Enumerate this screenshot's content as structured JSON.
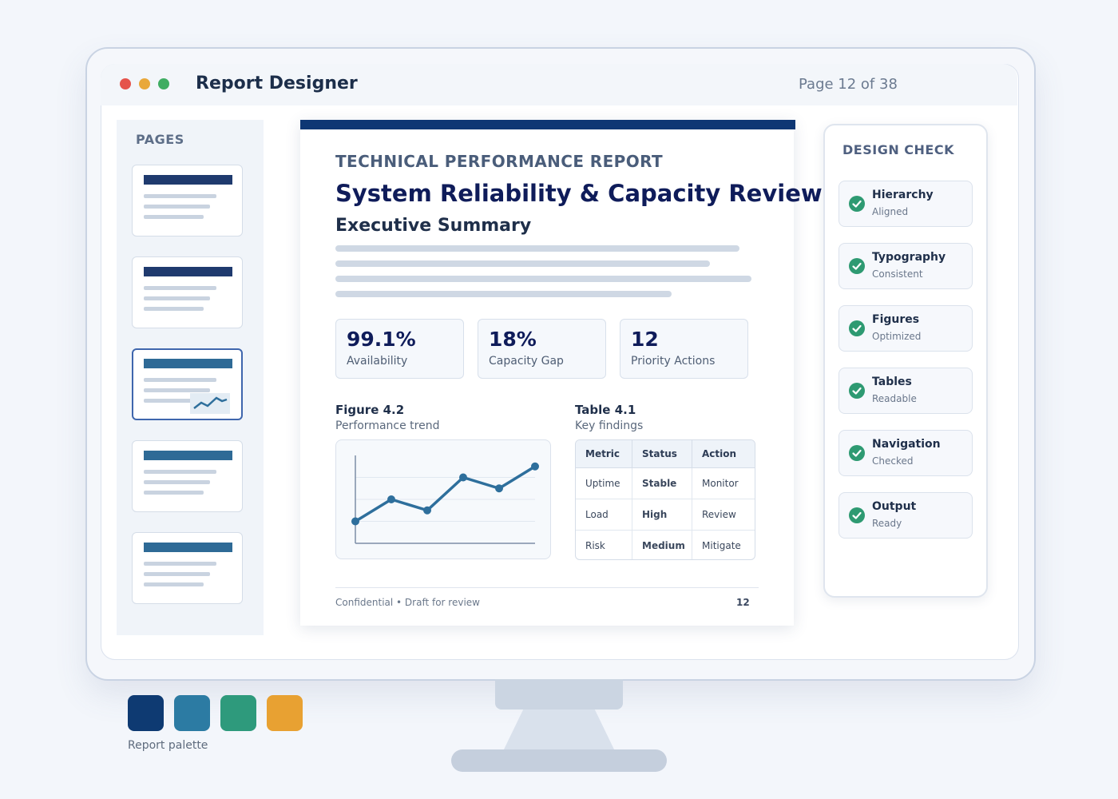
{
  "window": {
    "title": "Report Designer",
    "page_indicator": "Page 12 of 38",
    "controls": [
      {
        "name": "close",
        "color": "#e5534b"
      },
      {
        "name": "minimize",
        "color": "#e9a83a"
      },
      {
        "name": "maximize",
        "color": "#3fad62"
      }
    ]
  },
  "pages_panel": {
    "title": "PAGES",
    "thumbnails": [
      {
        "bar_color": "#1f3a6e",
        "active": false,
        "has_chart": false
      },
      {
        "bar_color": "#1f3a6e",
        "active": false,
        "has_chart": false
      },
      {
        "bar_color": "#2e6a96",
        "active": true,
        "has_chart": true
      },
      {
        "bar_color": "#2e6a96",
        "active": false,
        "has_chart": false
      },
      {
        "bar_color": "#2e6a96",
        "active": false,
        "has_chart": false
      }
    ]
  },
  "document": {
    "kicker": "TECHNICAL PERFORMANCE REPORT",
    "title": "System Reliability & Capacity Review",
    "section": "Executive Summary",
    "kpis": [
      {
        "value": "99.1%",
        "label": "Availability"
      },
      {
        "value": "18%",
        "label": "Capacity Gap"
      },
      {
        "value": "12",
        "label": "Priority Actions"
      }
    ],
    "figure": {
      "title": "Figure 4.2",
      "caption": "Performance trend"
    },
    "table": {
      "title": "Table 4.1",
      "caption": "Key findings",
      "headers": [
        "Metric",
        "Status",
        "Action"
      ],
      "rows": [
        {
          "metric": "Uptime",
          "status": "Stable",
          "action": "Monitor"
        },
        {
          "metric": "Load",
          "status": "High",
          "action": "Review"
        },
        {
          "metric": "Risk",
          "status": "Medium",
          "action": "Mitigate"
        }
      ]
    },
    "footer": "Confidential • Draft for review",
    "page_number": "12"
  },
  "chart_data": {
    "type": "line",
    "x": [
      1,
      2,
      3,
      4,
      5,
      6
    ],
    "y": [
      1.0,
      2.0,
      1.5,
      3.0,
      2.5,
      3.5
    ],
    "ylim": [
      0,
      4
    ],
    "grid": true,
    "line_color": "#2e6f9c"
  },
  "design_check": {
    "title": "DESIGN CHECK",
    "items": [
      {
        "name": "Hierarchy",
        "status": "Aligned"
      },
      {
        "name": "Typography",
        "status": "Consistent"
      },
      {
        "name": "Figures",
        "status": "Optimized"
      },
      {
        "name": "Tables",
        "status": "Readable"
      },
      {
        "name": "Navigation",
        "status": "Checked"
      },
      {
        "name": "Output",
        "status": "Ready"
      }
    ],
    "icon": "check-circle-icon",
    "icon_color": "#2e9a72"
  },
  "palette": {
    "label": "Report palette",
    "colors": [
      "#0e3a72",
      "#2c7ba3",
      "#2e9a7c",
      "#e8a132"
    ]
  }
}
